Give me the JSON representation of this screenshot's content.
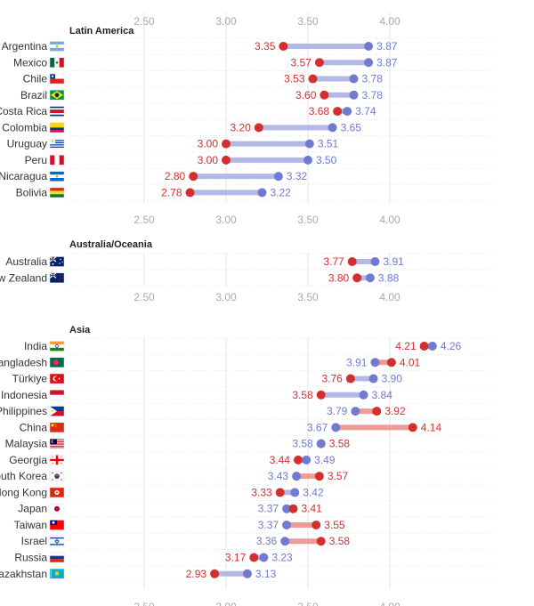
{
  "colors": {
    "red_dot": "#d32f2f",
    "blue_dot": "#6f7bd0",
    "bar_blue": "#b3b8e6",
    "bar_red": "#ee9a96",
    "red_text": "#d32f2f",
    "blue_text": "#6f7bd0"
  },
  "chart_data": [
    {
      "type": "dumbbell",
      "title": "Latin America",
      "x_ticks": [
        "2.50",
        "3.00",
        "3.50",
        "4.00"
      ],
      "xlim": [
        2.0,
        4.2
      ],
      "rows": [
        {
          "country": "Argentina",
          "flag": "argentina-flag",
          "red": 3.35,
          "blue": 3.87,
          "red_label": "3.35",
          "blue_label": "3.87"
        },
        {
          "country": "Mexico",
          "flag": "mexico-flag",
          "red": 3.57,
          "blue": 3.87,
          "red_label": "3.57",
          "blue_label": "3.87"
        },
        {
          "country": "Chile",
          "flag": "chile-flag",
          "red": 3.53,
          "blue": 3.78,
          "red_label": "3.53",
          "blue_label": "3.78"
        },
        {
          "country": "Brazil",
          "flag": "brazil-flag",
          "red": 3.6,
          "blue": 3.78,
          "red_label": "3.60",
          "blue_label": "3.78"
        },
        {
          "country": "Costa Rica",
          "flag": "costa-rica-flag",
          "red": 3.68,
          "blue": 3.74,
          "red_label": "3.68",
          "blue_label": "3.74"
        },
        {
          "country": "Colombia",
          "flag": "colombia-flag",
          "red": 3.2,
          "blue": 3.65,
          "red_label": "3.20",
          "blue_label": "3.65"
        },
        {
          "country": "Uruguay",
          "flag": "uruguay-flag",
          "red": 3.0,
          "blue": 3.51,
          "red_label": "3.00",
          "blue_label": "3.51"
        },
        {
          "country": "Peru",
          "flag": "peru-flag",
          "red": 3.0,
          "blue": 3.5,
          "red_label": "3.00",
          "blue_label": "3.50"
        },
        {
          "country": "Nicaragua",
          "flag": "nicaragua-flag",
          "red": 2.8,
          "blue": 3.32,
          "red_label": "2.80",
          "blue_label": "3.32"
        },
        {
          "country": "Bolivia",
          "flag": "bolivia-flag",
          "red": 2.78,
          "blue": 3.22,
          "red_label": "2.78",
          "blue_label": "3.22"
        }
      ]
    },
    {
      "type": "dumbbell",
      "title": "Australia/Oceania",
      "x_ticks": [
        "2.50",
        "3.00",
        "3.50",
        "4.00"
      ],
      "xlim": [
        2.0,
        4.2
      ],
      "rows": [
        {
          "country": "Australia",
          "flag": "australia-flag",
          "red": 3.77,
          "blue": 3.91,
          "red_label": "3.77",
          "blue_label": "3.91"
        },
        {
          "country": "New Zealand",
          "flag": "new-zealand-flag",
          "red": 3.8,
          "blue": 3.88,
          "red_label": "3.80",
          "blue_label": "3.88"
        }
      ]
    },
    {
      "type": "dumbbell",
      "title": "Asia",
      "x_ticks": [
        "2.50",
        "3.00",
        "3.50",
        "4.00"
      ],
      "xlim": [
        2.0,
        4.2
      ],
      "rows": [
        {
          "country": "India",
          "flag": "india-flag",
          "red": 4.21,
          "blue": 4.26,
          "red_label": "4.21",
          "blue_label": "4.26"
        },
        {
          "country": "Bangladesh",
          "flag": "bangladesh-flag",
          "red": 4.01,
          "blue": 3.91,
          "red_label": "4.01",
          "blue_label": "3.91"
        },
        {
          "country": "Türkiye",
          "flag": "turkiye-flag",
          "red": 3.76,
          "blue": 3.9,
          "red_label": "3.76",
          "blue_label": "3.90"
        },
        {
          "country": "Indonesia",
          "flag": "indonesia-flag",
          "red": 3.58,
          "blue": 3.84,
          "red_label": "3.58",
          "blue_label": "3.84"
        },
        {
          "country": "Philippines",
          "flag": "philippines-flag",
          "red": 3.92,
          "blue": 3.79,
          "red_label": "3.92",
          "blue_label": "3.79"
        },
        {
          "country": "China",
          "flag": "china-flag",
          "red": 4.14,
          "blue": 3.67,
          "red_label": "4.14",
          "blue_label": "3.67"
        },
        {
          "country": "Malaysia",
          "flag": "malaysia-flag",
          "red": 3.58,
          "blue": 3.58,
          "red_label": "3.58",
          "blue_label": "3.58"
        },
        {
          "country": "Georgia",
          "flag": "georgia-flag",
          "red": 3.44,
          "blue": 3.49,
          "red_label": "3.44",
          "blue_label": "3.49"
        },
        {
          "country": "South Korea",
          "flag": "south-korea-flag",
          "red": 3.57,
          "blue": 3.43,
          "red_label": "3.57",
          "blue_label": "3.43"
        },
        {
          "country": "Hong Kong",
          "flag": "hong-kong-flag",
          "red": 3.33,
          "blue": 3.42,
          "red_label": "3.33",
          "blue_label": "3.42"
        },
        {
          "country": "Japan",
          "flag": "japan-flag",
          "red": 3.41,
          "blue": 3.37,
          "red_label": "3.41",
          "blue_label": "3.37"
        },
        {
          "country": "Taiwan",
          "flag": "taiwan-flag",
          "red": 3.55,
          "blue": 3.37,
          "red_label": "3.55",
          "blue_label": "3.37"
        },
        {
          "country": "Israel",
          "flag": "israel-flag",
          "red": 3.58,
          "blue": 3.36,
          "red_label": "3.58",
          "blue_label": "3.36"
        },
        {
          "country": "Russia",
          "flag": "russia-flag",
          "red": 3.17,
          "blue": 3.23,
          "red_label": "3.17",
          "blue_label": "3.23"
        },
        {
          "country": "Kazakhstan",
          "flag": "kazakhstan-flag",
          "red": 2.93,
          "blue": 3.13,
          "red_label": "2.93",
          "blue_label": "3.13"
        }
      ]
    }
  ]
}
